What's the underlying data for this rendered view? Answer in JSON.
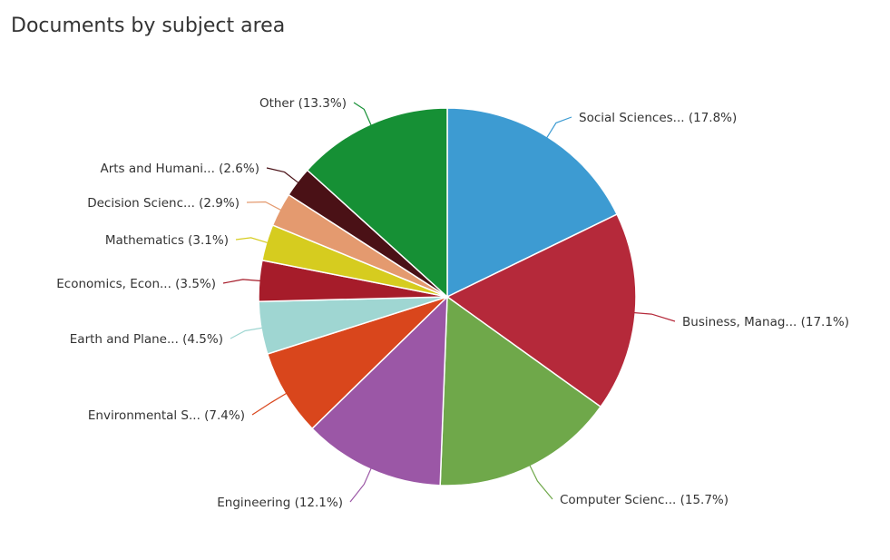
{
  "chart_data": {
    "type": "pie",
    "title": "Documents by subject area",
    "slices": [
      {
        "label": "Social Sciences... (17.8%)",
        "value": 17.8,
        "color": "#3d9bd2"
      },
      {
        "label": "Business, Manag... (17.1%)",
        "value": 17.1,
        "color": "#b5293a"
      },
      {
        "label": "Computer Scienc... (15.7%)",
        "value": 15.7,
        "color": "#6fa84a"
      },
      {
        "label": "Engineering (12.1%)",
        "value": 12.1,
        "color": "#9b57a6"
      },
      {
        "label": "Environmental S... (7.4%)",
        "value": 7.4,
        "color": "#d9461c"
      },
      {
        "label": "Earth and Plane... (4.5%)",
        "value": 4.5,
        "color": "#9fd6d2"
      },
      {
        "label": "Economics, Econ... (3.5%)",
        "value": 3.5,
        "color": "#a61c2a"
      },
      {
        "label": "Mathematics (3.1%)",
        "value": 3.1,
        "color": "#d6cc1f"
      },
      {
        "label": "Decision Scienc... (2.9%)",
        "value": 2.9,
        "color": "#e49a6f"
      },
      {
        "label": "Arts and Humani... (2.6%)",
        "value": 2.6,
        "color": "#4a1116"
      },
      {
        "label": "Other (13.3%)",
        "value": 13.3,
        "color": "#169035"
      }
    ]
  }
}
